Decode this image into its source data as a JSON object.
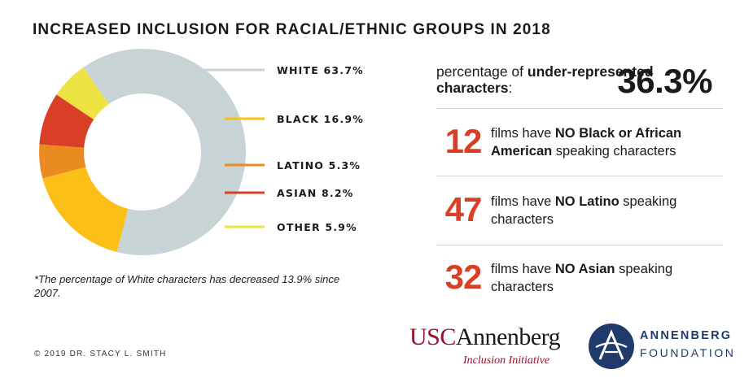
{
  "title": "INCREASED INCLUSION FOR RACIAL/ETHNIC GROUPS IN 2018",
  "chart_data": {
    "type": "pie",
    "donut": true,
    "legend_position": "right",
    "slices": [
      {
        "label": "WHITE 63.7%",
        "name": "WHITE",
        "value": 63.7,
        "color": "#c7d3d4"
      },
      {
        "label": "BLACK 16.9%",
        "name": "BLACK",
        "value": 16.9,
        "color": "#fbbf17"
      },
      {
        "label": "LATINO 5.3%",
        "name": "LATINO",
        "value": 5.3,
        "color": "#ea8b22"
      },
      {
        "label": "ASIAN 8.2%",
        "name": "ASIAN",
        "value": 8.2,
        "color": "#d93f27"
      },
      {
        "label": "OTHER 5.9%",
        "name": "OTHER",
        "value": 5.9,
        "color": "#ede343"
      }
    ]
  },
  "footnote": "*The percentage of White characters has decreased 13.9% since 2007.",
  "underrepresented": {
    "text_pre": "percentage of ",
    "text_bold": "under-represented characters",
    "text_post": ":",
    "value": "36.3%"
  },
  "stats": [
    {
      "number": "12",
      "pre": "films have ",
      "bold": "NO Black or African American",
      "post": " speaking characters"
    },
    {
      "number": "47",
      "pre": "films have ",
      "bold": "NO Latino",
      "post": " speaking characters"
    },
    {
      "number": "32",
      "pre": "films have ",
      "bold": "NO Asian",
      "post": " speaking characters"
    }
  ],
  "copyright": "© 2019 DR. STACY L. SMITH",
  "logos": {
    "usc_red": "USC",
    "usc_dark": "Annenberg",
    "usc_sub": "Inclusion Initiative",
    "foundation_name": "ANNENBERG",
    "foundation_sub": "FOUNDATION"
  },
  "colors": {
    "accent": "#d93f27",
    "foundation_blue": "#1f3a6b",
    "usc_cardinal": "#9a0f2e"
  }
}
